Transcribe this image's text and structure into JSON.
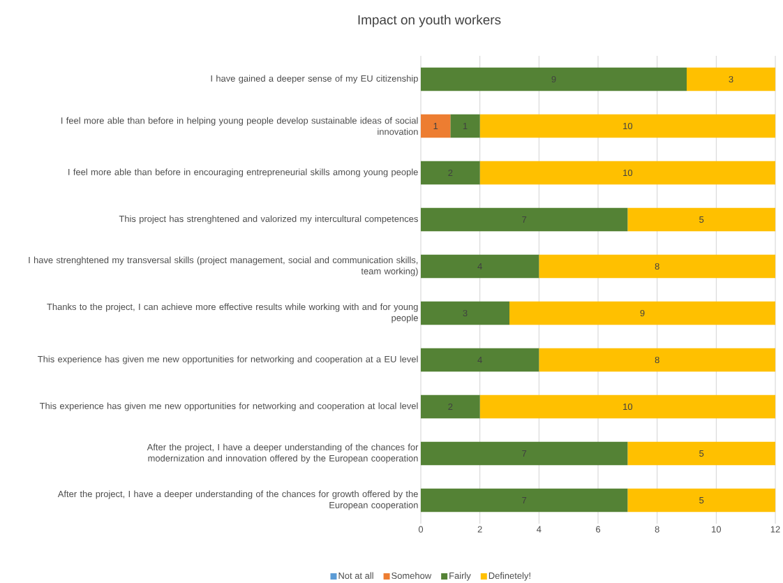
{
  "chart_data": {
    "type": "bar",
    "orientation": "horizontal",
    "stacked": true,
    "title": "Impact on youth workers",
    "categories": [
      "I have gained a deeper sense of my EU citizenship",
      "I feel more able than before in helping young people develop sustainable ideas of social innovation",
      "I feel more able than before in encouraging entrepreneurial skills among young people",
      "This project has strenghtened and valorized my intercultural competences",
      "I have strenghtened my transversal skills (project management, social and communication skills, team working)",
      "Thanks to the project, I can achieve more effective results while working with and for young people",
      "This experience has given me new opportunities for networking and cooperation at a EU level",
      "This experience has given me new opportunities for networking and cooperation at local level",
      "After the project, I have a deeper understanding of the chances for modernization and innovation offered by the European cooperation",
      "After the project, I have a deeper understanding of the chances for growth offered by the European cooperation"
    ],
    "series": [
      {
        "name": "Not at all",
        "color": "#5b9bd5",
        "values": [
          0,
          0,
          0,
          0,
          0,
          0,
          0,
          0,
          0,
          0
        ],
        "value_labels": [
          null,
          null,
          null,
          null,
          null,
          null,
          null,
          null,
          null,
          null
        ]
      },
      {
        "name": "Somehow",
        "color": "#ed7d31",
        "values": [
          0,
          1,
          0,
          0,
          0,
          0,
          0,
          0,
          0,
          0
        ],
        "value_labels": [
          null,
          "1",
          null,
          null,
          null,
          null,
          null,
          null,
          null,
          null
        ]
      },
      {
        "name": "Fairly",
        "color": "#548235",
        "values": [
          9,
          1,
          2,
          7,
          4,
          3,
          4,
          2,
          7,
          7
        ],
        "value_labels": [
          "9",
          "1",
          "2",
          "7",
          "4",
          "3",
          "4",
          "2",
          "7",
          "7"
        ]
      },
      {
        "name": "Definetely!",
        "color": "#ffc000",
        "values": [
          3,
          10,
          10,
          5,
          8,
          9,
          8,
          10,
          5,
          5
        ],
        "value_labels": [
          "3",
          "10",
          "10",
          "5",
          "8",
          "9",
          "8",
          "10",
          "5",
          "5"
        ]
      }
    ],
    "xlim": [
      0,
      12
    ],
    "xticks": [
      0,
      2,
      4,
      6,
      8,
      10,
      12
    ],
    "grid": "x",
    "legend": "bottom"
  }
}
